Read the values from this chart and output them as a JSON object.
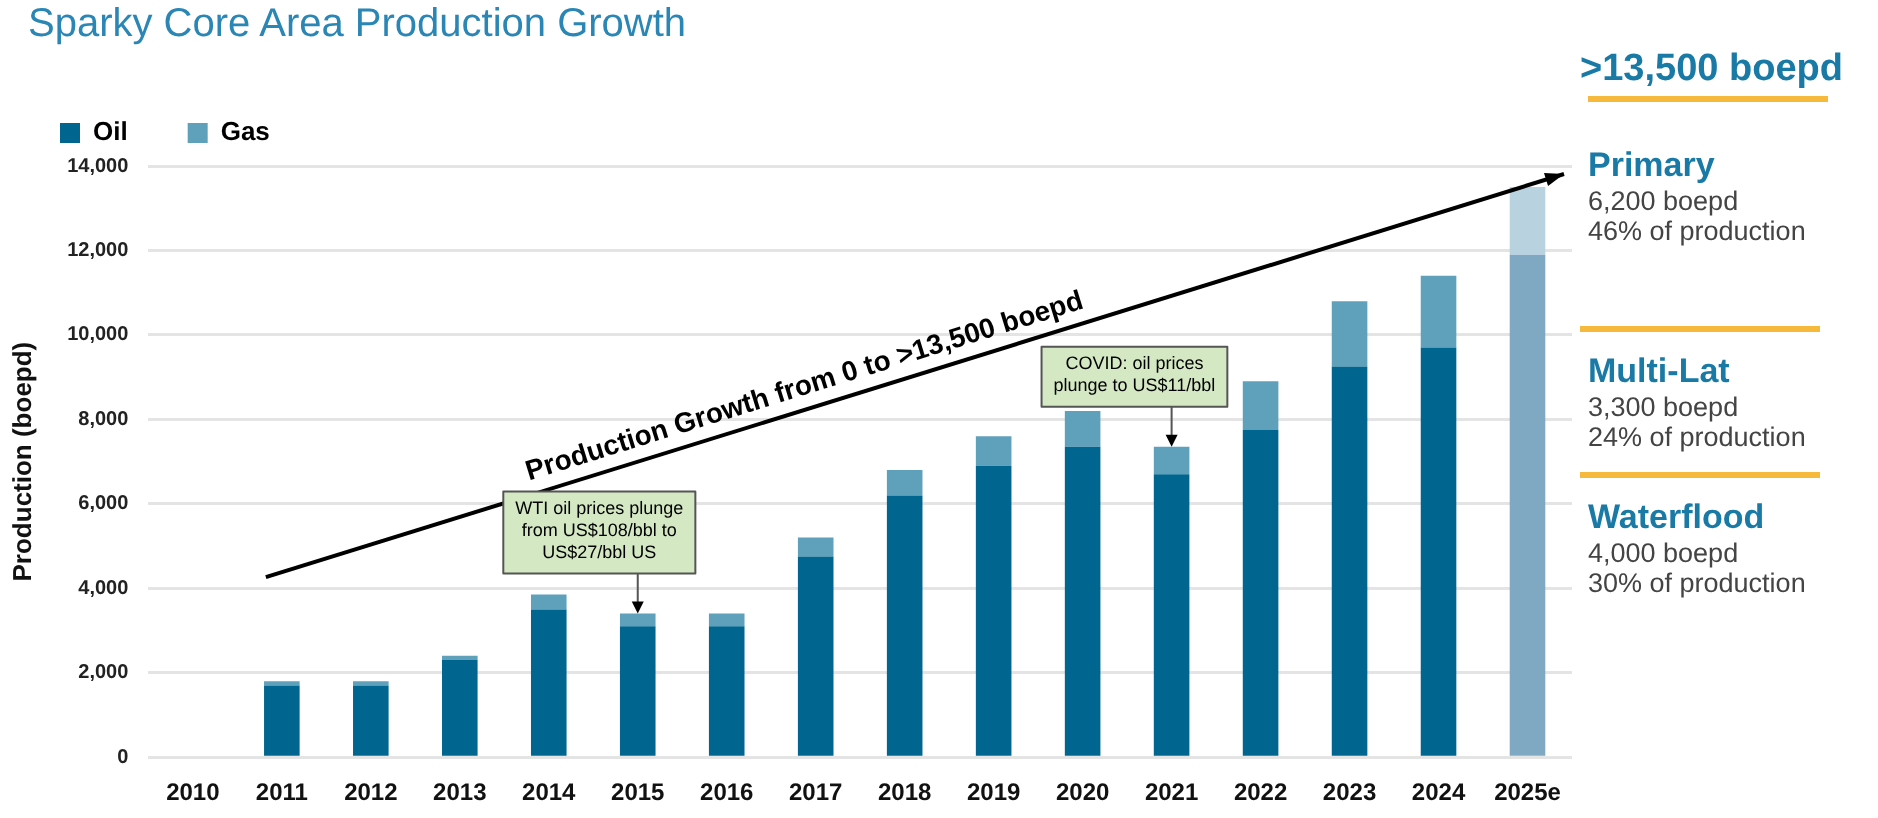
{
  "chart_data": {
    "type": "bar",
    "title": "Sparky Core Area Production Growth",
    "ylabel": "Production (boepd)",
    "stacked": true,
    "grid": "y",
    "legend": "top left",
    "categories": [
      "2010",
      "2011",
      "2012",
      "2013",
      "2014",
      "2015",
      "2016",
      "2017",
      "2018",
      "2019",
      "2020",
      "2021",
      "2022",
      "2023",
      "2024",
      "2025e"
    ],
    "series": [
      {
        "name": "Oil",
        "color": "#00668f",
        "colors": [
          "#00668f",
          "#00668f",
          "#00668f",
          "#00668f",
          "#00668f",
          "#00668f",
          "#00668f",
          "#00668f",
          "#00668f",
          "#00668f",
          "#00668f",
          "#00668f",
          "#00668f",
          "#00668f",
          "#00668f",
          "#7fa9c2"
        ],
        "values": [
          0,
          1700,
          1700,
          2300,
          3500,
          3100,
          3100,
          4750,
          6200,
          6900,
          7350,
          6700,
          7750,
          9250,
          9700,
          11900
        ]
      },
      {
        "name": "Gas",
        "color": "#5fa0bb",
        "colors": [
          "#5fa0bb",
          "#5fa0bb",
          "#5fa0bb",
          "#5fa0bb",
          "#5fa0bb",
          "#5fa0bb",
          "#5fa0bb",
          "#5fa0bb",
          "#5fa0bb",
          "#5fa0bb",
          "#5fa0bb",
          "#5fa0bb",
          "#5fa0bb",
          "#5fa0bb",
          "#5fa0bb",
          "#b8d2df"
        ],
        "values": [
          0,
          100,
          100,
          100,
          350,
          300,
          300,
          450,
          600,
          700,
          850,
          650,
          1150,
          1550,
          1700,
          1600
        ]
      }
    ],
    "ylim": [
      0,
      14000
    ],
    "yticks": [
      {
        "value": 0,
        "label": "0"
      },
      {
        "value": 2000,
        "label": "2,000"
      },
      {
        "value": 4000,
        "label": "4,000"
      },
      {
        "value": 6000,
        "label": "6,000"
      },
      {
        "value": 8000,
        "label": "8,000"
      },
      {
        "value": 10000,
        "label": "10,000"
      },
      {
        "value": 12000,
        "label": "12,000"
      },
      {
        "value": 14000,
        "label": "14,000"
      }
    ],
    "annotations": [
      "Production Growth from 0 to >13,500 boepd",
      ">13,500 boepd",
      "Primary",
      "6,200 boepd",
      "46% of production",
      "Multi-Lat",
      "3,300 boepd",
      "24% of production",
      "Waterflood",
      "4,000 boepd",
      "30% of production",
      {
        "text": "WTI oil prices plunge from US$108/bbl to US$27/bbl US",
        "x": "2015",
        "y": 3400
      },
      {
        "text": "COVID: oil prices plunge to US$11/bbl",
        "x": "2021",
        "y": 7350
      }
    ]
  }
}
